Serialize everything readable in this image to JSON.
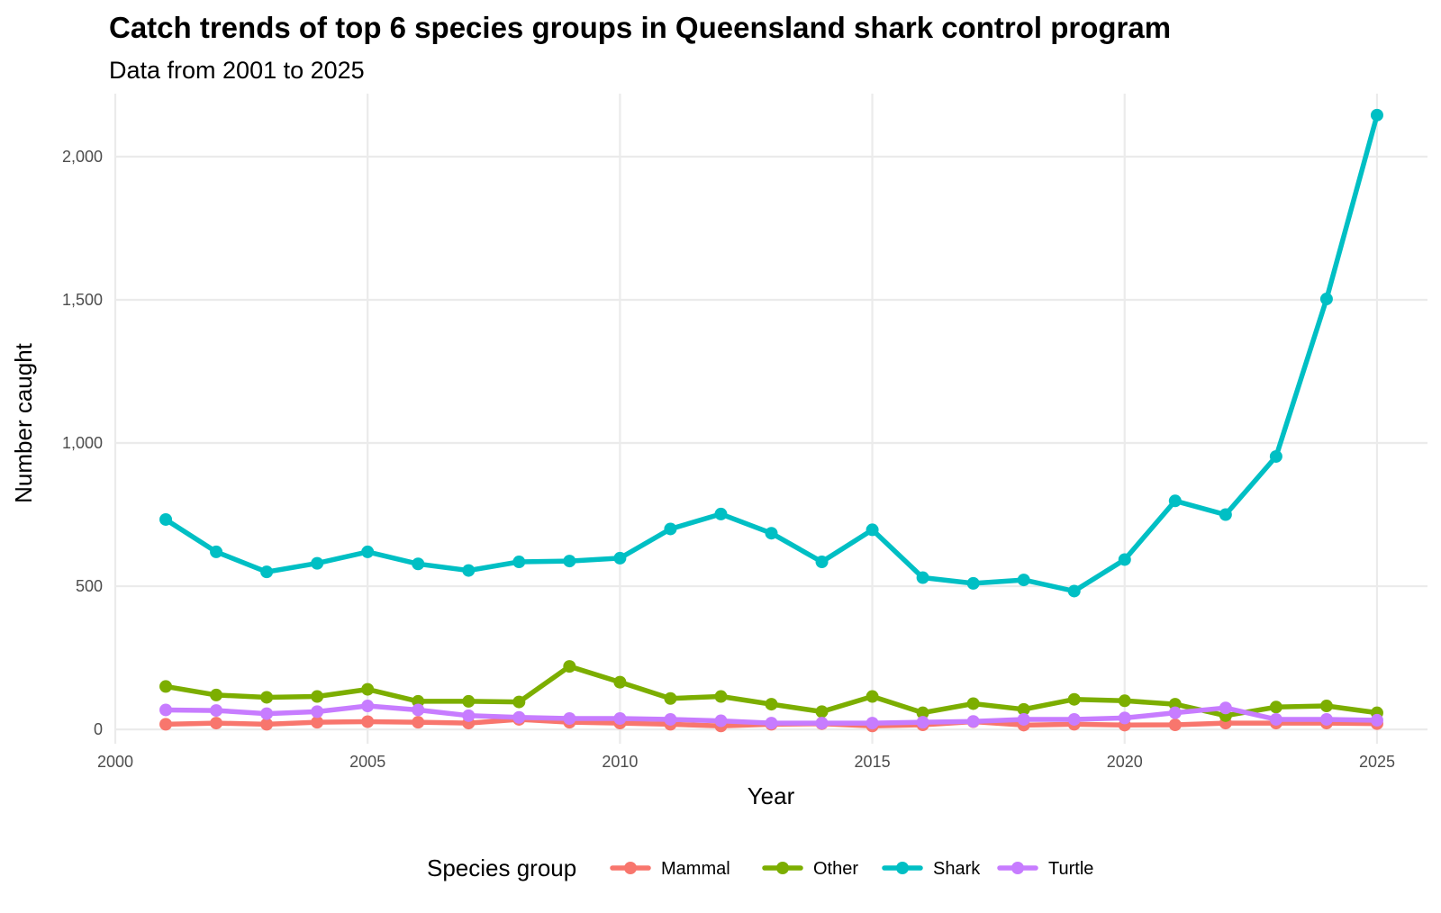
{
  "chart_data": {
    "type": "line",
    "title": "Catch trends of top 6 species groups in Queensland shark control program",
    "subtitle": "Data from 2001 to 2025",
    "xlabel": "Year",
    "ylabel": "Number caught",
    "xlim": [
      2000,
      2026
    ],
    "ylim": [
      -50,
      2220
    ],
    "x_ticks": [
      2000,
      2005,
      2010,
      2015,
      2020,
      2025
    ],
    "x_tick_labels": [
      "2000",
      "2005",
      "2010",
      "2015",
      "2020",
      "2025"
    ],
    "y_ticks": [
      0,
      500,
      1000,
      1500,
      2000
    ],
    "y_tick_labels": [
      "0",
      "500",
      "1,000",
      "1,500",
      "2,000"
    ],
    "grid": true,
    "legend": {
      "title": "Species group",
      "position": "bottom"
    },
    "x": [
      2001,
      2002,
      2003,
      2004,
      2005,
      2006,
      2007,
      2008,
      2009,
      2010,
      2011,
      2012,
      2013,
      2014,
      2015,
      2016,
      2017,
      2018,
      2019,
      2020,
      2021,
      2022,
      2023,
      2024,
      2025
    ],
    "series": [
      {
        "name": "Mammal",
        "color": "#F8766D",
        "values": [
          18,
          22,
          18,
          25,
          27,
          25,
          22,
          35,
          25,
          22,
          18,
          12,
          18,
          20,
          12,
          16,
          27,
          15,
          18,
          15,
          16,
          22,
          22,
          22,
          20
        ]
      },
      {
        "name": "Other",
        "color": "#7CAE00",
        "values": [
          150,
          120,
          112,
          115,
          140,
          98,
          98,
          96,
          220,
          165,
          108,
          115,
          88,
          62,
          115,
          58,
          90,
          70,
          105,
          100,
          88,
          48,
          78,
          82,
          58
        ]
      },
      {
        "name": "Shark",
        "color": "#00BFC4",
        "values": [
          733,
          620,
          550,
          580,
          620,
          578,
          555,
          585,
          588,
          598,
          700,
          752,
          685,
          585,
          697,
          530,
          510,
          522,
          483,
          593,
          798,
          750,
          953,
          1503,
          2145
        ]
      },
      {
        "name": "Turtle",
        "color": "#C77CFF",
        "values": [
          68,
          66,
          55,
          62,
          82,
          68,
          48,
          42,
          38,
          38,
          35,
          30,
          22,
          22,
          22,
          25,
          28,
          35,
          35,
          40,
          58,
          75,
          35,
          35,
          32
        ]
      }
    ]
  }
}
